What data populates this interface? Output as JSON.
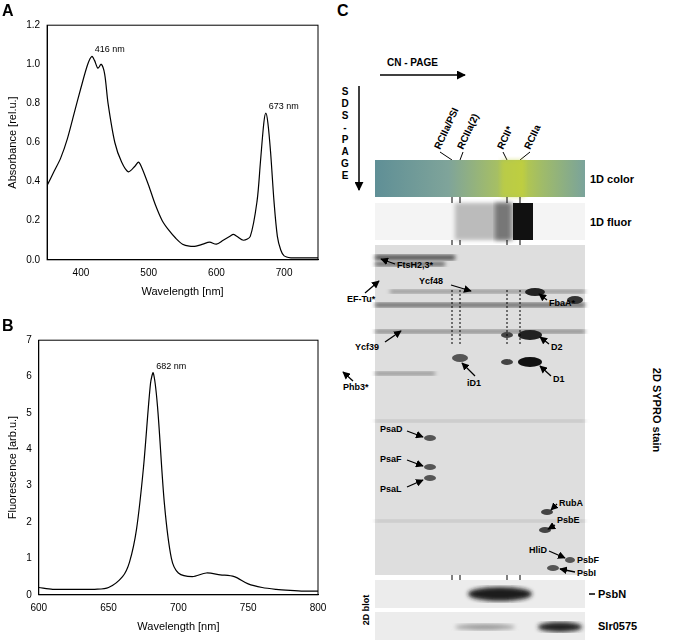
{
  "chart_data": [
    {
      "type": "line",
      "title": "A",
      "x_label": "Wavelength [nm]",
      "y_label": "Absorbance [rel.u.]",
      "x": [
        350,
        360,
        370,
        380,
        390,
        400,
        410,
        416,
        420,
        425,
        430,
        435,
        440,
        450,
        460,
        470,
        480,
        485,
        490,
        500,
        510,
        520,
        530,
        540,
        550,
        560,
        570,
        580,
        590,
        600,
        610,
        620,
        625,
        630,
        640,
        650,
        660,
        665,
        670,
        673,
        676,
        680,
        685,
        690,
        695,
        700,
        710,
        720,
        750
      ],
      "values": [
        0.38,
        0.45,
        0.52,
        0.62,
        0.75,
        0.88,
        1.0,
        1.04,
        1.02,
        0.98,
        1.0,
        0.95,
        0.8,
        0.6,
        0.5,
        0.45,
        0.48,
        0.5,
        0.47,
        0.38,
        0.28,
        0.2,
        0.15,
        0.11,
        0.08,
        0.07,
        0.07,
        0.08,
        0.09,
        0.08,
        0.1,
        0.12,
        0.13,
        0.12,
        0.1,
        0.12,
        0.3,
        0.5,
        0.7,
        0.75,
        0.7,
        0.55,
        0.3,
        0.12,
        0.05,
        0.02,
        0.01,
        0.01,
        0.01
      ],
      "color": "#000000",
      "xlim": [
        350,
        750
      ],
      "xticks": [
        400,
        500,
        600,
        700
      ],
      "ylim": [
        0,
        1.2
      ],
      "yticks": [
        {
          "value": 0,
          "label": "0.0"
        },
        0.2,
        0.4,
        0.6,
        0.8,
        {
          "value": 1,
          "label": "1.0"
        },
        1.2
      ],
      "grid": false,
      "annotations": [
        {
          "x": 416,
          "y": 1.04,
          "text": "416 nm"
        },
        {
          "x": 673,
          "y": 0.75,
          "text": "673 nm"
        }
      ]
    },
    {
      "type": "line",
      "title": "B",
      "x_label": "Wavelength [nm]",
      "y_label": "Fluorescence [arb.u.]",
      "x": [
        600,
        610,
        620,
        630,
        640,
        650,
        660,
        665,
        670,
        675,
        680,
        682,
        685,
        690,
        695,
        700,
        710,
        720,
        730,
        740,
        750,
        760,
        770,
        780,
        790,
        800
      ],
      "values": [
        0.2,
        0.15,
        0.15,
        0.15,
        0.15,
        0.2,
        0.5,
        0.9,
        1.8,
        3.5,
        5.8,
        6.1,
        5.2,
        2.5,
        1.0,
        0.6,
        0.5,
        0.6,
        0.55,
        0.5,
        0.3,
        0.2,
        0.15,
        0.12,
        0.1,
        0.1
      ],
      "color": "#000000",
      "xlim": [
        600,
        800
      ],
      "xticks": [
        600,
        650,
        700,
        750,
        800
      ],
      "ylim": [
        0,
        7
      ],
      "yticks": [
        0,
        1,
        2,
        3,
        4,
        5,
        6,
        7
      ],
      "grid": false,
      "annotations": [
        {
          "x": 682,
          "y": 6.1,
          "text": "682 nm"
        }
      ]
    }
  ],
  "gel": {
    "title": "C",
    "x_axis_label": "CN - PAGE",
    "y_axis_label": "SDS-PAGE",
    "lanes": [
      "RCIIa/PSI",
      "RCIIa(2)",
      "RCII*",
      "RCIIa"
    ],
    "strips": [
      "1D color",
      "1D fluor",
      "2D SYPRO stain"
    ],
    "blot_label": "2D blot",
    "blots": [
      "PsbN",
      "Slr0575"
    ],
    "proteins": [
      "FtsH2,3*",
      "EF-Tu*",
      "Ycf48",
      "FbaA*",
      "Ycf39",
      "D2",
      "Phb3*",
      "iD1",
      "D1",
      "PsaD",
      "PsaF",
      "PsaL",
      "RubA",
      "PsbE",
      "HliD",
      "PsbF",
      "PsbI"
    ]
  }
}
